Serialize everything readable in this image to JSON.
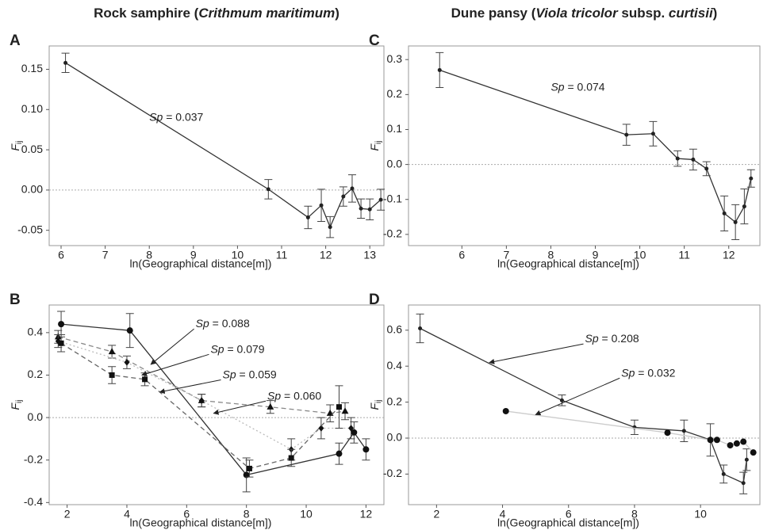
{
  "chart_data": [
    {
      "type": "line",
      "label": "A",
      "title": [
        {
          "text": "Rock samphire (",
          "italic": false
        },
        {
          "text": "Crithmum maritimum",
          "italic": true
        },
        {
          "text": ")",
          "italic": false
        }
      ],
      "ylabel": "F",
      "ylabel_sub": "ij",
      "xlabel": "ln(Geographical distance[m])",
      "xlim": [
        5.73,
        13.32
      ],
      "ylim": [
        -0.069,
        0.179
      ],
      "xticks": [
        6,
        7,
        8,
        9,
        10,
        11,
        12,
        13
      ],
      "yticks": [
        -0.05,
        {
          "value": 0,
          "label": "0.00"
        },
        0.05,
        {
          "value": 0.1,
          "label": "0.10"
        },
        0.15
      ],
      "zero_line": 0,
      "series": [
        {
          "marker": "circle",
          "color": "#222222",
          "line_color": "#333333",
          "dash": "solid",
          "marker_size": 2.5,
          "x": [
            6.1,
            10.7,
            11.6,
            11.9,
            12.1,
            12.4,
            12.6,
            12.8,
            13.0,
            13.25
          ],
          "values": [
            0.158,
            0.001,
            -0.034,
            -0.019,
            -0.046,
            -0.008,
            0.002,
            -0.023,
            -0.024,
            -0.012
          ],
          "err": [
            0.012,
            0.012,
            0.014,
            0.02,
            0.013,
            0.012,
            0.017,
            0.012,
            0.013,
            0.013
          ]
        }
      ],
      "annotations": [
        {
          "prefix": "Sp",
          "text": " =  0.037",
          "x": 8.0,
          "y": 0.09
        }
      ]
    },
    {
      "type": "line",
      "label": "B",
      "ylabel": "F",
      "ylabel_sub": "ij",
      "xlabel": "ln(Geographical distance[m])",
      "xlim": [
        1.4,
        12.6
      ],
      "ylim": [
        -0.41,
        0.53
      ],
      "xticks": [
        2,
        4,
        6,
        8,
        10,
        12
      ],
      "yticks": [
        -0.4,
        -0.2,
        {
          "value": 0,
          "label": "0.0"
        },
        0.2,
        0.4
      ],
      "zero_line": 0,
      "series": [
        {
          "marker": "circle",
          "color": "#111111",
          "line_color": "#333333",
          "dash": "solid",
          "marker_size": 4,
          "x": [
            1.8,
            4.1,
            8.0,
            11.1,
            11.6,
            12.0
          ],
          "values": [
            0.44,
            0.41,
            -0.27,
            -0.17,
            -0.07,
            -0.15
          ],
          "err": [
            0.06,
            0.08,
            0.08,
            0.05,
            0.05,
            0.05
          ]
        },
        {
          "marker": "triangle",
          "color": "#111111",
          "line_color": "#888888",
          "dash": "dashed",
          "marker_size": 4,
          "x": [
            1.7,
            3.5,
            6.5,
            8.8,
            10.8,
            11.3
          ],
          "values": [
            0.38,
            0.31,
            0.08,
            0.05,
            0.02,
            0.03
          ],
          "err": [
            0.03,
            0.03,
            0.03,
            0.03,
            0.04,
            0.04
          ]
        },
        {
          "marker": "diamond",
          "color": "#111111",
          "line_color": "#bbbbbb",
          "dash": "dotted",
          "marker_size": 3.5,
          "x": [
            1.7,
            4.0,
            6.5,
            9.5,
            10.5,
            11.5
          ],
          "values": [
            0.36,
            0.26,
            0.08,
            -0.15,
            -0.05,
            -0.05
          ],
          "err": [
            0.03,
            0.03,
            0.03,
            0.05,
            0.05,
            0.05
          ]
        },
        {
          "marker": "square",
          "color": "#111111",
          "line_color": "#666666",
          "dash": "dashed",
          "marker_size": 3.5,
          "x": [
            1.8,
            3.5,
            4.6,
            8.1,
            9.5,
            11.1
          ],
          "values": [
            0.35,
            0.2,
            0.18,
            -0.24,
            -0.19,
            0.05
          ],
          "err": [
            0.04,
            0.04,
            0.03,
            0.04,
            0.04,
            0.1
          ]
        }
      ],
      "annotations": [
        {
          "prefix": "Sp",
          "text": " = 0.088",
          "x": 6.3,
          "y": 0.44,
          "arrow_to": [
            4.8,
            0.25
          ]
        },
        {
          "prefix": "Sp",
          "text": " = 0.079",
          "x": 6.8,
          "y": 0.32,
          "arrow_to": [
            4.5,
            0.2
          ]
        },
        {
          "prefix": "Sp",
          "text": " = 0.059",
          "x": 7.2,
          "y": 0.2,
          "arrow_to": [
            5.1,
            0.12
          ]
        },
        {
          "prefix": "Sp",
          "text": " = 0.060",
          "x": 8.7,
          "y": 0.1,
          "arrow_to": [
            6.9,
            0.02
          ]
        }
      ]
    },
    {
      "type": "line",
      "label": "C",
      "title": [
        {
          "text": "Dune pansy (",
          "italic": false
        },
        {
          "text": "Viola tricolor",
          "italic": true
        },
        {
          "text": " subsp. ",
          "italic": false
        },
        {
          "text": "curtisii",
          "italic": true
        },
        {
          "text": ")",
          "italic": false
        }
      ],
      "ylabel": "F",
      "ylabel_sub": "ij",
      "xlabel": "ln(Geographical distance[m])",
      "xlim": [
        4.8,
        12.7
      ],
      "ylim": [
        -0.232,
        0.339
      ],
      "xticks": [
        6,
        7,
        8,
        9,
        10,
        11,
        12
      ],
      "yticks": [
        -0.2,
        -0.1,
        {
          "value": 0,
          "label": "0.0"
        },
        0.1,
        0.2,
        0.3
      ],
      "zero_line": 0,
      "series": [
        {
          "marker": "circle",
          "color": "#222222",
          "line_color": "#333333",
          "dash": "solid",
          "marker_size": 2.5,
          "x": [
            5.5,
            9.7,
            10.3,
            10.85,
            11.2,
            11.5,
            11.9,
            12.15,
            12.35,
            12.5
          ],
          "values": [
            0.27,
            0.085,
            0.088,
            0.017,
            0.014,
            -0.012,
            -0.14,
            -0.165,
            -0.12,
            -0.04
          ],
          "err": [
            0.05,
            0.03,
            0.035,
            0.022,
            0.03,
            0.02,
            0.05,
            0.05,
            0.05,
            0.025
          ]
        }
      ],
      "annotations": [
        {
          "prefix": "Sp",
          "text": " = 0.074",
          "x": 8.0,
          "y": 0.22
        }
      ]
    },
    {
      "type": "line",
      "label": "D",
      "ylabel": "F",
      "ylabel_sub": "ij",
      "xlabel": "ln(Geographical distance[m])",
      "xlim": [
        1.15,
        11.8
      ],
      "ylim": [
        -0.37,
        0.74
      ],
      "xticks": [
        2,
        4,
        6,
        8,
        10
      ],
      "yticks": [
        -0.2,
        {
          "value": 0,
          "label": "0.0"
        },
        0.2,
        0.4,
        0.6
      ],
      "zero_line": 0,
      "series": [
        {
          "marker": "circle",
          "color": "#222222",
          "line_color": "#333333",
          "dash": "solid",
          "marker_size": 2.5,
          "x": [
            1.5,
            5.8,
            8.0,
            9.5,
            10.3,
            10.7,
            11.3,
            11.4
          ],
          "values": [
            0.61,
            0.21,
            0.06,
            0.04,
            -0.01,
            -0.2,
            -0.25,
            -0.12
          ],
          "err": [
            0.08,
            0.03,
            0.04,
            0.06,
            0.09,
            0.05,
            0.06,
            0.06
          ]
        },
        {
          "marker": "circle",
          "color": "#111111",
          "line_color": "#cccccc",
          "dash": "solid",
          "marker_size": 4,
          "x": [
            4.1,
            9.0,
            10.3,
            10.5,
            10.9,
            11.1,
            11.3,
            11.6
          ],
          "values": [
            0.15,
            0.03,
            -0.01,
            -0.01,
            -0.04,
            -0.03,
            -0.02,
            -0.08
          ]
        }
      ],
      "annotations": [
        {
          "prefix": "Sp",
          "text": " = 0.208",
          "x": 6.5,
          "y": 0.55,
          "arrow_to": [
            3.6,
            0.42
          ]
        },
        {
          "prefix": "Sp",
          "text": " = 0.032",
          "x": 7.6,
          "y": 0.36,
          "arrow_to": [
            5.0,
            0.13
          ]
        }
      ]
    }
  ]
}
